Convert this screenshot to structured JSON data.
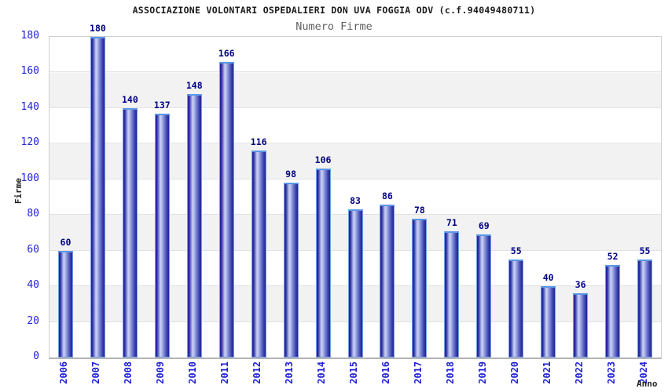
{
  "header": {
    "title": "ASSOCIAZIONE VOLONTARI OSPEDALIERI DON UVA FOGGIA ODV (c.f.94049480711)",
    "subtitle": "Numero Firme"
  },
  "chart_data": {
    "type": "bar",
    "title": "Numero Firme",
    "categories": [
      "2006",
      "2007",
      "2008",
      "2009",
      "2010",
      "2011",
      "2012",
      "2013",
      "2014",
      "2015",
      "2016",
      "2017",
      "2018",
      "2019",
      "2020",
      "2021",
      "2022",
      "2023",
      "2024"
    ],
    "values": [
      60,
      180,
      140,
      137,
      148,
      166,
      116,
      98,
      106,
      83,
      86,
      78,
      71,
      69,
      55,
      40,
      36,
      52,
      55
    ],
    "xlabel": "Anno",
    "ylabel": "Firme",
    "ylim": [
      0,
      180
    ],
    "ytick_step": 20,
    "yticks": [
      0,
      20,
      40,
      60,
      80,
      100,
      120,
      140,
      160,
      180
    ],
    "legend_position": "none",
    "grid": "alternating-horizontal-bands",
    "data_labels": "above-bars",
    "colors": {
      "bar_dark": "#22229a",
      "bar_highlight": "#cdd3f4",
      "bar_border": "#74a0e4",
      "tick_label": "#2222d4",
      "value_label": "#000080",
      "band_gray": "#f2f2f2",
      "band_white": "#ffffff",
      "plot_border": "#cfcfcf",
      "title_color": "#1a1a1a",
      "subtitle_color": "#606060",
      "axis_title_color": "#222222"
    }
  }
}
